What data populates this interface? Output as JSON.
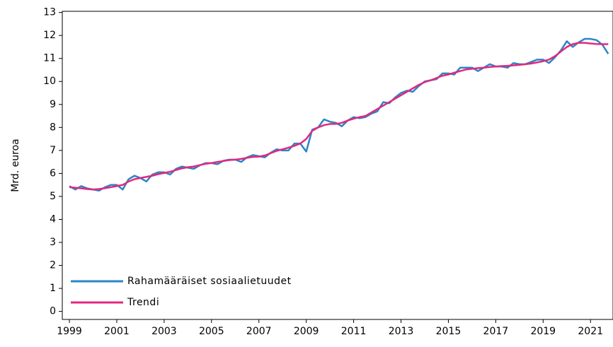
{
  "chart_data": {
    "type": "line",
    "ylabel": "Mrd. euroa",
    "x": [
      1999,
      1999.25,
      1999.5,
      1999.75,
      2000,
      2000.25,
      2000.5,
      2000.75,
      2001,
      2001.25,
      2001.5,
      2001.75,
      2002,
      2002.25,
      2002.5,
      2002.75,
      2003,
      2003.25,
      2003.5,
      2003.75,
      2004,
      2004.25,
      2004.5,
      2004.75,
      2005,
      2005.25,
      2005.5,
      2005.75,
      2006,
      2006.25,
      2006.5,
      2006.75,
      2007,
      2007.25,
      2007.5,
      2007.75,
      2008,
      2008.25,
      2008.5,
      2008.75,
      2009,
      2009.25,
      2009.5,
      2009.75,
      2010,
      2010.25,
      2010.5,
      2010.75,
      2011,
      2011.25,
      2011.5,
      2011.75,
      2012,
      2012.25,
      2012.5,
      2012.75,
      2013,
      2013.25,
      2013.5,
      2013.75,
      2014,
      2014.25,
      2014.5,
      2014.75,
      2015,
      2015.25,
      2015.5,
      2015.75,
      2016,
      2016.25,
      2016.5,
      2016.75,
      2017,
      2017.25,
      2017.5,
      2017.75,
      2018,
      2018.25,
      2018.5,
      2018.75,
      2019,
      2019.25,
      2019.5,
      2019.75,
      2020,
      2020.25,
      2020.5,
      2020.75,
      2021,
      2021.25,
      2021.5,
      2021.75
    ],
    "series": [
      {
        "name": "Rahamääräiset sosiaalietuudet",
        "color": "#2a86c6",
        "values": [
          5.45,
          5.3,
          5.45,
          5.35,
          5.3,
          5.25,
          5.4,
          5.5,
          5.5,
          5.3,
          5.75,
          5.9,
          5.8,
          5.65,
          5.95,
          6.05,
          6.05,
          5.95,
          6.2,
          6.3,
          6.25,
          6.2,
          6.35,
          6.45,
          6.45,
          6.4,
          6.55,
          6.6,
          6.6,
          6.5,
          6.7,
          6.8,
          6.75,
          6.7,
          6.9,
          7.05,
          7.0,
          7.0,
          7.3,
          7.3,
          6.95,
          7.9,
          8.0,
          8.35,
          8.25,
          8.2,
          8.05,
          8.3,
          8.45,
          8.4,
          8.45,
          8.6,
          8.7,
          9.1,
          9.05,
          9.3,
          9.5,
          9.6,
          9.55,
          9.8,
          10.0,
          10.05,
          10.1,
          10.35,
          10.35,
          10.3,
          10.6,
          10.6,
          10.6,
          10.45,
          10.6,
          10.75,
          10.65,
          10.65,
          10.6,
          10.8,
          10.75,
          10.75,
          10.85,
          10.95,
          10.95,
          10.8,
          11.05,
          11.35,
          11.75,
          11.5,
          11.7,
          11.85,
          11.85,
          11.8,
          11.6,
          11.2
        ]
      },
      {
        "name": "Trendi",
        "color": "#e3287f",
        "values": [
          5.4,
          5.38,
          5.35,
          5.32,
          5.3,
          5.32,
          5.36,
          5.4,
          5.45,
          5.5,
          5.65,
          5.75,
          5.8,
          5.85,
          5.9,
          5.97,
          6.02,
          6.07,
          6.15,
          6.22,
          6.27,
          6.3,
          6.36,
          6.42,
          6.45,
          6.5,
          6.54,
          6.58,
          6.6,
          6.63,
          6.68,
          6.72,
          6.73,
          6.78,
          6.88,
          6.98,
          7.05,
          7.12,
          7.2,
          7.3,
          7.5,
          7.85,
          8.0,
          8.1,
          8.15,
          8.15,
          8.2,
          8.3,
          8.38,
          8.45,
          8.5,
          8.65,
          8.8,
          8.95,
          9.1,
          9.25,
          9.4,
          9.55,
          9.7,
          9.85,
          9.97,
          10.05,
          10.15,
          10.25,
          10.3,
          10.38,
          10.45,
          10.52,
          10.55,
          10.58,
          10.6,
          10.63,
          10.65,
          10.67,
          10.68,
          10.7,
          10.72,
          10.75,
          10.78,
          10.83,
          10.88,
          10.95,
          11.1,
          11.3,
          11.5,
          11.62,
          11.68,
          11.68,
          11.65,
          11.63,
          11.62,
          11.62
        ]
      }
    ],
    "xlim": [
      1998.7,
      2021.95
    ],
    "xticks": [
      1999,
      2001,
      2003,
      2005,
      2007,
      2009,
      2011,
      2013,
      2015,
      2017,
      2019,
      2021
    ],
    "ylim": [
      -0.35,
      13.05
    ],
    "yticks": [
      0,
      1,
      2,
      3,
      4,
      5,
      6,
      7,
      8,
      9,
      10,
      11,
      12,
      13
    ],
    "grid": false,
    "legend": "lower left"
  }
}
